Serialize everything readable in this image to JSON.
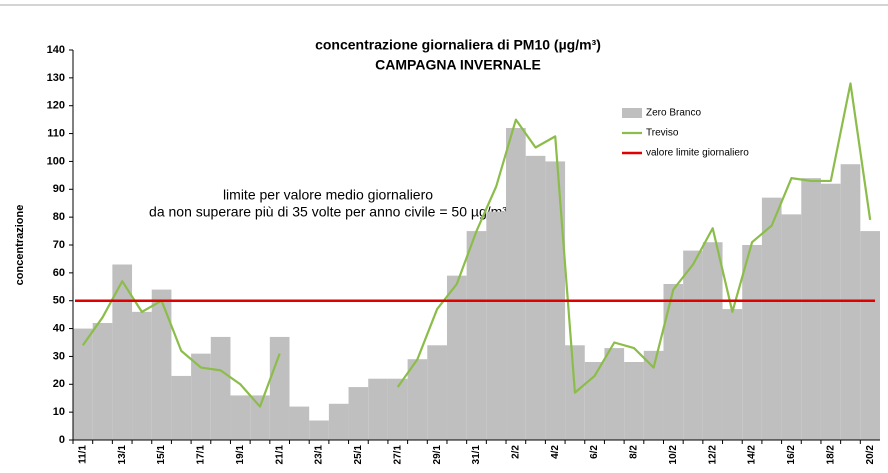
{
  "chart_data": {
    "type": "bar",
    "title": "concentrazione giornaliera di PM10 (µg/m³)",
    "subtitle": "CAMPAGNA INVERNALE",
    "y_label": "concentrazione",
    "annotation": [
      "limite per valore medio giornaliero",
      "da non superare più di 35 volte per anno civile = 50 µg/m³"
    ],
    "categories": [
      "11/1",
      null,
      "13/1",
      null,
      "15/1",
      null,
      "17/1",
      null,
      "19/1",
      null,
      "21/1",
      null,
      "23/1",
      null,
      "25/1",
      null,
      "27/1",
      null,
      "29/1",
      null,
      "31/1",
      null,
      "2/2",
      null,
      "4/2",
      null,
      "6/2",
      null,
      "8/2",
      null,
      "10/2",
      null,
      "12/2",
      null,
      "14/2",
      null,
      "16/2",
      null,
      "18/2",
      null,
      "20/2"
    ],
    "series": [
      {
        "name": "Zero Branco",
        "color": "#bfbfbf",
        "kind": "bar",
        "values": [
          40,
          42,
          63,
          46,
          54,
          23,
          31,
          37,
          16,
          16,
          37,
          12,
          7,
          13,
          19,
          22,
          22,
          29,
          34,
          59,
          75,
          82,
          112,
          102,
          100,
          34,
          28,
          33,
          28,
          32,
          56,
          68,
          71,
          47,
          70,
          87,
          81,
          94,
          92,
          99,
          75
        ]
      },
      {
        "name": "Treviso",
        "color": "#8cbd4a",
        "kind": "line",
        "values": [
          34,
          44,
          57,
          46,
          50,
          32,
          26,
          25,
          20,
          12,
          31,
          null,
          null,
          null,
          null,
          null,
          19,
          29,
          47,
          56,
          75,
          91,
          115,
          105,
          109,
          17,
          23,
          35,
          33,
          26,
          54,
          63,
          76,
          46,
          71,
          77,
          94,
          93,
          93,
          128,
          79
        ]
      }
    ],
    "limit": {
      "name": "valore limite giornaliero",
      "color": "#e00000",
      "value": 50
    },
    "ylim": [
      0,
      140
    ],
    "yticks": [
      0,
      10,
      20,
      30,
      40,
      50,
      60,
      70,
      80,
      90,
      100,
      110,
      120,
      130,
      140
    ]
  }
}
